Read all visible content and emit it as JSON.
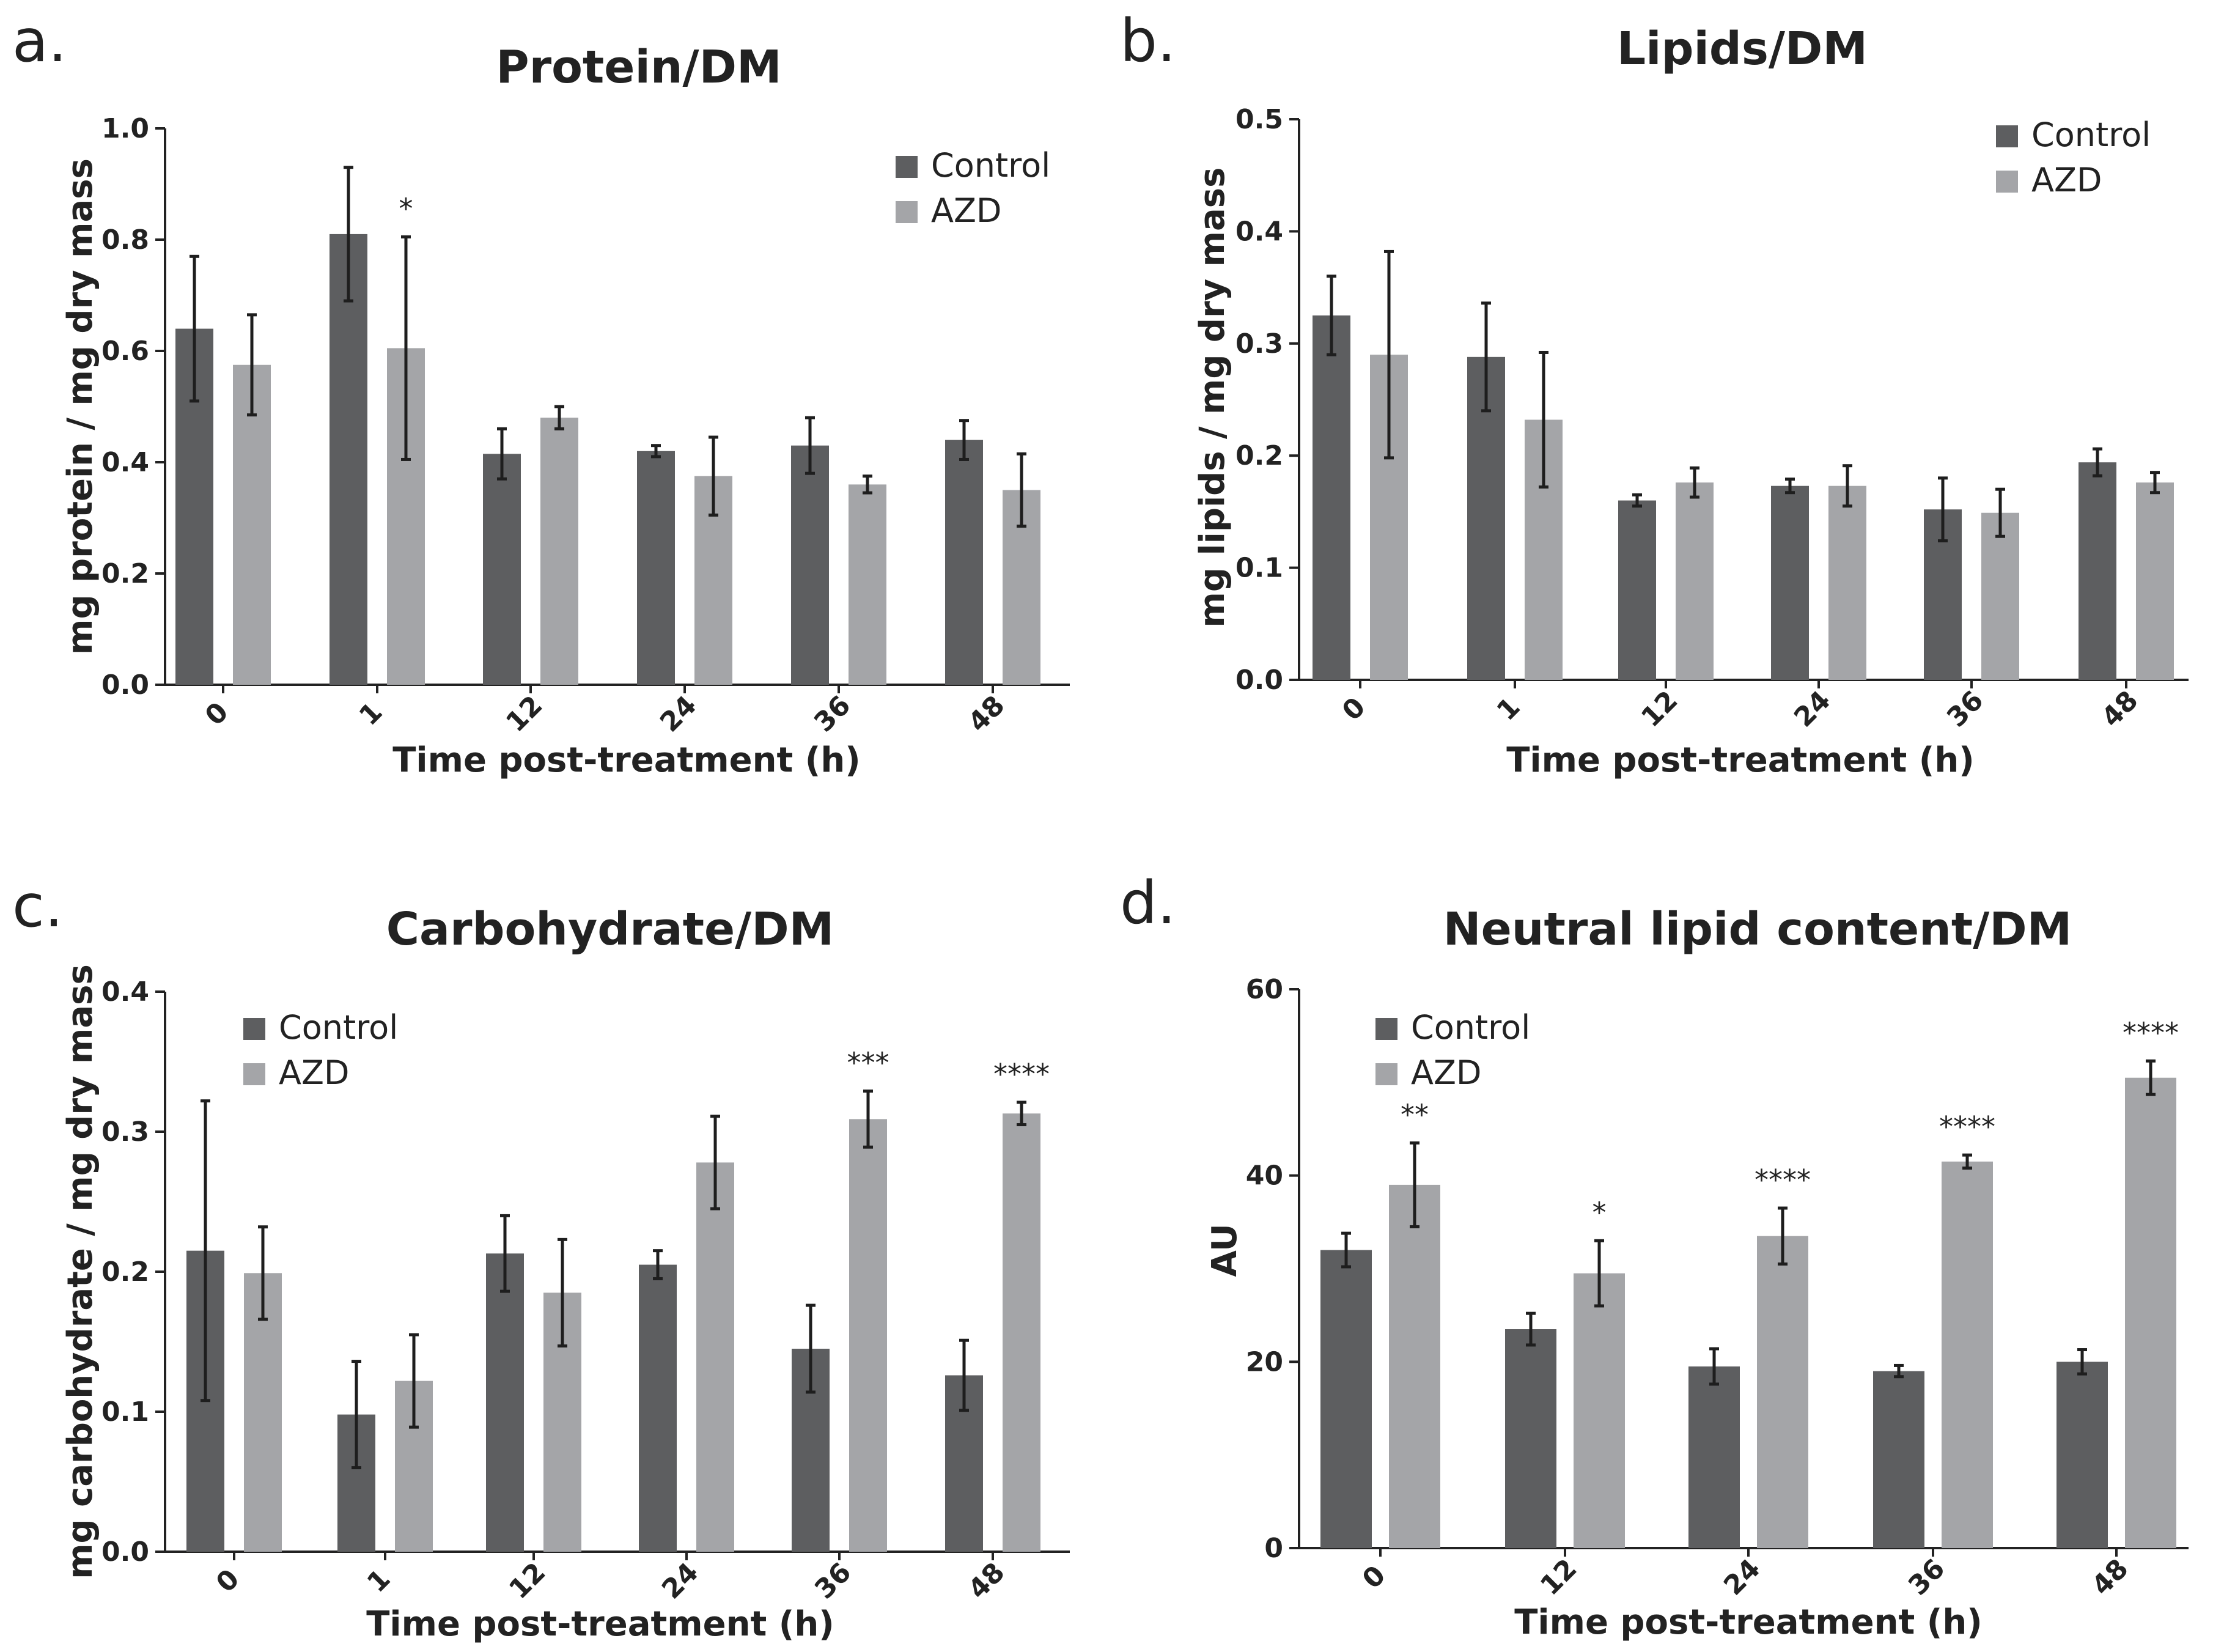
{
  "figure": {
    "panels": [
      {
        "letter": "a."
      },
      {
        "letter": "b."
      },
      {
        "letter": "c."
      },
      {
        "letter": "d."
      }
    ]
  },
  "colors": {
    "control": "#5d5e60",
    "azd": "#a4a5a8",
    "axis": "#222222",
    "error": "#1e1e1e"
  },
  "chart_data": [
    {
      "type": "bar",
      "title": "Protein/DM",
      "xlabel": "Time post-treatment (h)",
      "ylabel": "mg protein / mg dry mass",
      "categories": [
        "0",
        "1",
        "12",
        "24",
        "36",
        "48"
      ],
      "ylim": [
        0,
        1.0
      ],
      "yticks": [
        "0.0",
        "0.2",
        "0.4",
        "0.6",
        "0.8",
        "1.0"
      ],
      "legend_position": "top-right",
      "series": [
        {
          "name": "Control",
          "values": [
            0.64,
            0.81,
            0.415,
            0.42,
            0.43,
            0.44
          ],
          "errors": [
            0.13,
            0.12,
            0.045,
            0.01,
            0.05,
            0.035
          ]
        },
        {
          "name": "AZD",
          "values": [
            0.575,
            0.605,
            0.48,
            0.375,
            0.36,
            0.35
          ],
          "errors": [
            0.09,
            0.2,
            0.02,
            0.07,
            0.015,
            0.065
          ]
        }
      ],
      "annotations": [
        {
          "category": "1",
          "series": "AZD",
          "text": "*"
        }
      ]
    },
    {
      "type": "bar",
      "title": "Lipids/DM",
      "xlabel": "Time post-treatment (h)",
      "ylabel": "mg lipids / mg dry mass",
      "categories": [
        "0",
        "1",
        "12",
        "24",
        "36",
        "48"
      ],
      "ylim": [
        0,
        0.5
      ],
      "yticks": [
        "0.0",
        "0.1",
        "0.2",
        "0.3",
        "0.4",
        "0.5"
      ],
      "legend_position": "top-right",
      "series": [
        {
          "name": "Control",
          "values": [
            0.325,
            0.288,
            0.16,
            0.173,
            0.152,
            0.194
          ],
          "errors": [
            0.035,
            0.048,
            0.005,
            0.006,
            0.028,
            0.012
          ]
        },
        {
          "name": "AZD",
          "values": [
            0.29,
            0.232,
            0.176,
            0.173,
            0.149,
            0.176
          ],
          "errors": [
            0.092,
            0.06,
            0.013,
            0.018,
            0.021,
            0.009
          ]
        }
      ],
      "annotations": []
    },
    {
      "type": "bar",
      "title": "Carbohydrate/DM",
      "xlabel": "Time post-treatment (h)",
      "ylabel": "mg carbohydrate / mg dry mass",
      "categories": [
        "0",
        "1",
        "12",
        "24",
        "36",
        "48"
      ],
      "ylim": [
        0,
        0.4
      ],
      "yticks": [
        "0.0",
        "0.1",
        "0.2",
        "0.3",
        "0.4"
      ],
      "legend_position": "top-left",
      "series": [
        {
          "name": "Control",
          "values": [
            0.215,
            0.098,
            0.213,
            0.205,
            0.145,
            0.126
          ],
          "errors": [
            0.107,
            0.038,
            0.027,
            0.01,
            0.031,
            0.025
          ]
        },
        {
          "name": "AZD",
          "values": [
            0.199,
            0.122,
            0.185,
            0.278,
            0.309,
            0.313
          ],
          "errors": [
            0.033,
            0.033,
            0.038,
            0.033,
            0.02,
            0.008
          ]
        }
      ],
      "annotations": [
        {
          "category": "36",
          "series": "AZD",
          "text": "***"
        },
        {
          "category": "48",
          "series": "AZD",
          "text": "****"
        }
      ]
    },
    {
      "type": "bar",
      "title": "Neutral lipid content/DM",
      "xlabel": "Time post-treatment (h)",
      "ylabel": "AU",
      "categories": [
        "0",
        "12",
        "24",
        "36",
        "48"
      ],
      "ylim": [
        0,
        60
      ],
      "yticks": [
        "0",
        "20",
        "40",
        "60"
      ],
      "legend_position": "top-left",
      "series": [
        {
          "name": "Control",
          "values": [
            32,
            23.5,
            19.5,
            19,
            20
          ],
          "errors": [
            1.8,
            1.7,
            1.9,
            0.6,
            1.3
          ]
        },
        {
          "name": "AZD",
          "values": [
            39,
            29.5,
            33.5,
            41.5,
            50.5
          ],
          "errors": [
            4.5,
            3.5,
            3.0,
            0.7,
            1.8
          ]
        }
      ],
      "annotations": [
        {
          "category": "0",
          "series": "AZD",
          "text": "**"
        },
        {
          "category": "12",
          "series": "AZD",
          "text": "*"
        },
        {
          "category": "24",
          "series": "AZD",
          "text": "****"
        },
        {
          "category": "36",
          "series": "AZD",
          "text": "****"
        },
        {
          "category": "48",
          "series": "AZD",
          "text": "****"
        }
      ]
    }
  ]
}
